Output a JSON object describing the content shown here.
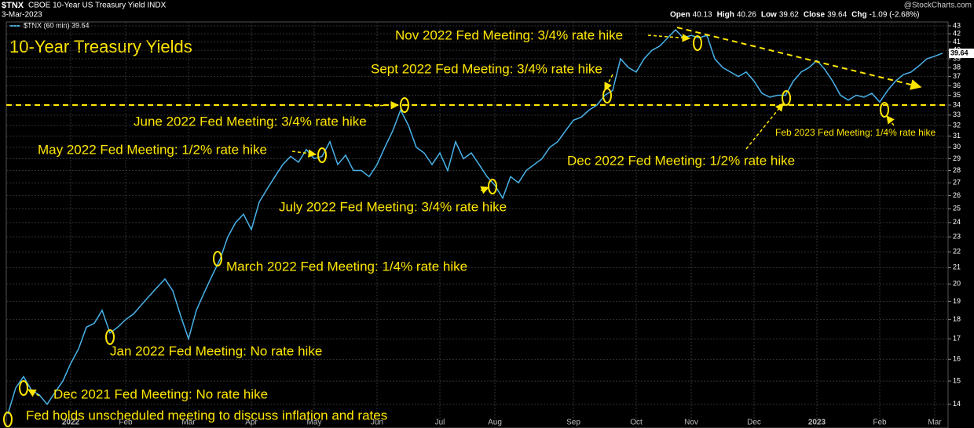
{
  "header": {
    "symbol": "$TNX",
    "name": "CBOE 10-Year US Treasury Yield INDX",
    "date": "3-Mar-2023",
    "brand": "@StockCharts.com",
    "legend": "$TNX (60 min) 39.64",
    "ohlc": [
      {
        "label": "Open",
        "value": "40.13"
      },
      {
        "label": "High",
        "value": "40.26"
      },
      {
        "label": "Low",
        "value": "39.62"
      },
      {
        "label": "Close",
        "value": "39.64"
      },
      {
        "label": "Chg",
        "value": "-1.09 (-2.68%)"
      }
    ]
  },
  "chart_data": {
    "type": "line",
    "title": "10-Year Treasury Yields",
    "color": "#49b3ea",
    "log_scale": true,
    "grid": true,
    "ylim": [
      13.05,
      43.5
    ],
    "yticks": [
      14,
      15,
      16,
      17,
      18,
      19,
      20,
      21,
      22,
      23,
      24,
      25,
      26,
      27,
      28,
      29,
      30,
      31,
      32,
      33,
      34,
      35,
      36,
      37,
      38,
      39,
      40,
      41,
      42,
      43
    ],
    "hline": 34,
    "categories": [
      null,
      null,
      null,
      null,
      null,
      null,
      null,
      null,
      "2022",
      null,
      null,
      null,
      null,
      null,
      null,
      "Feb",
      null,
      null,
      null,
      null,
      null,
      null,
      null,
      "Mar",
      null,
      null,
      null,
      null,
      null,
      null,
      null,
      "Apr",
      null,
      null,
      null,
      null,
      null,
      null,
      null,
      "May",
      null,
      null,
      null,
      null,
      null,
      null,
      null,
      "Jun",
      null,
      null,
      null,
      null,
      null,
      null,
      null,
      "Jul",
      null,
      null,
      null,
      null,
      null,
      null,
      "Aug",
      null,
      null,
      null,
      null,
      null,
      null,
      null,
      null,
      null,
      "Sep",
      null,
      null,
      null,
      null,
      null,
      null,
      null,
      "Oct",
      null,
      null,
      null,
      null,
      null,
      null,
      "Nov",
      null,
      null,
      null,
      null,
      null,
      null,
      null,
      "Dec",
      null,
      null,
      null,
      null,
      null,
      null,
      null,
      "2023",
      null,
      null,
      null,
      null,
      null,
      null,
      null,
      "Feb",
      null,
      null,
      null,
      null,
      null,
      null,
      "Mar",
      null
    ],
    "values": [
      13.6,
      14.7,
      15.2,
      14.6,
      14.4,
      14.0,
      14.5,
      15.0,
      15.8,
      16.5,
      17.6,
      17.8,
      18.5,
      17.3,
      17.6,
      18.0,
      18.3,
      18.8,
      19.3,
      19.8,
      20.3,
      19.6,
      18.2,
      17.0,
      18.5,
      19.5,
      20.5,
      21.5,
      23.0,
      24.0,
      24.6,
      23.5,
      25.5,
      26.5,
      27.5,
      28.5,
      29.2,
      28.7,
      29.8,
      29.0,
      29.2,
      30.5,
      28.5,
      29.3,
      28.0,
      28.0,
      27.5,
      28.5,
      30.0,
      31.5,
      33.5,
      32.0,
      30.0,
      29.5,
      28.5,
      29.5,
      28.0,
      30.5,
      29.0,
      29.5,
      28.5,
      27.5,
      26.8,
      25.8,
      27.5,
      27.0,
      28.0,
      28.5,
      29.0,
      30.0,
      30.5,
      31.5,
      32.5,
      32.8,
      33.5,
      34.0,
      35.0,
      35.5,
      39.0,
      38.0,
      37.5,
      39.0,
      40.0,
      40.5,
      41.5,
      42.5,
      41.5,
      41.8,
      41.5,
      41.8,
      39.0,
      38.0,
      37.5,
      37.0,
      37.5,
      36.5,
      35.2,
      34.8,
      35.0,
      35.0,
      36.5,
      37.5,
      38.0,
      38.8,
      37.8,
      36.5,
      35.0,
      34.5,
      35.0,
      34.8,
      35.2,
      34.3,
      35.5,
      36.5,
      37.2,
      37.5,
      38.2,
      39.0,
      39.3,
      39.64
    ],
    "annotations": [
      "Nov 2022 Fed Meeting: 3/4% rate hike",
      "Sept 2022 Fed Meeting: 3/4% rate hike",
      "June 2022 Fed Meeting: 3/4% rate hike",
      "May 2022 Fed Meeting: 1/2% rate hike",
      "July 2022 Fed Meeting: 3/4% rate hike",
      "March 2022 Fed Meeting: 1/4% rate hike",
      "Jan 2022 Fed Meeting: No rate hike",
      "Dec 2021 Fed Meeting: No rate hike",
      "Fed holds unscheduled meeting to discuss inflation and rates",
      "Dec 2022 Fed Meeting: 1/2% rate hike",
      "Feb 2023 Fed Meeting: 1/4% rate hike"
    ]
  }
}
